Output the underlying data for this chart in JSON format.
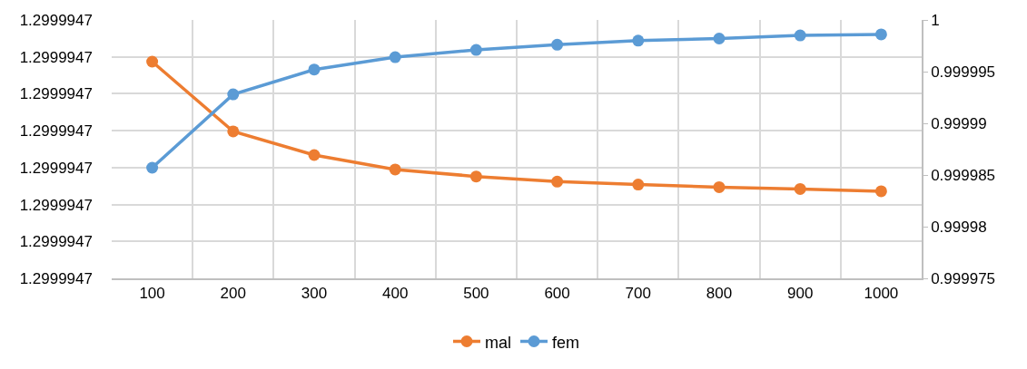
{
  "chart_data": {
    "type": "line",
    "categories": [
      "100",
      "200",
      "300",
      "400",
      "500",
      "600",
      "700",
      "800",
      "900",
      "1000"
    ],
    "series": [
      {
        "name": "mal",
        "color": "#ed7d31",
        "values": [
          1.2999947187,
          1.2999946998,
          1.2999946934,
          1.2999946895,
          1.2999946876,
          1.2999946862,
          1.2999946854,
          1.2999946847,
          1.2999946842,
          1.2999946836
        ]
      },
      {
        "name": "fem",
        "color": "#5b9bd5",
        "axis": "y2",
        "values": [
          0.9999857,
          0.9999928,
          0.9999952,
          0.9999964,
          0.9999971,
          0.9999976,
          0.999998,
          0.9999982,
          0.9999985,
          0.9999986
        ]
      }
    ],
    "ylim": [
      1.29999466,
      1.29999473
    ],
    "yticks": [
      {
        "value": 1.29999466,
        "label": "1.2999947"
      },
      {
        "value": 1.29999467,
        "label": "1.2999947"
      },
      {
        "value": 1.29999468,
        "label": "1.2999947"
      },
      {
        "value": 1.29999469,
        "label": "1.2999947"
      },
      {
        "value": 1.2999947,
        "label": "1.2999947"
      },
      {
        "value": 1.29999471,
        "label": "1.2999947"
      },
      {
        "value": 1.29999472,
        "label": "1.2999947"
      },
      {
        "value": 1.29999473,
        "label": "1.2999947"
      }
    ],
    "y2lim": [
      0.999975,
      1
    ],
    "y2ticks": [
      0.999975,
      0.99998,
      0.999985,
      0.99999,
      0.999995,
      1
    ],
    "grid": true,
    "legend": "bottom",
    "marker": "circle",
    "line_style": "solid"
  }
}
